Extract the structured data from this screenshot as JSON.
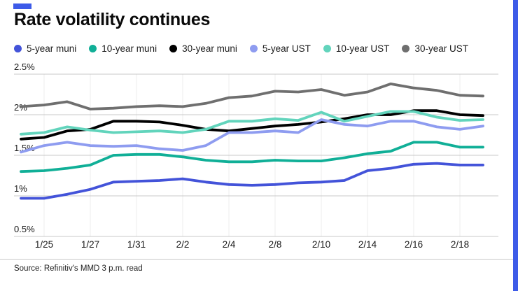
{
  "page": {
    "title": "Rate volatility continues",
    "source": "Source: Refinitiv's MMD 3 p.m. read",
    "accent_color": "#3d5be8"
  },
  "chart_data": {
    "type": "line",
    "title": "Rate volatility continues",
    "xlabel": "",
    "ylabel": "",
    "ylim": [
      0.5,
      2.5
    ],
    "yticks": [
      2.5,
      2.0,
      1.5,
      1.0,
      0.5
    ],
    "ytick_labels": [
      "2.5%",
      "2%",
      "1.5%",
      "1%",
      "0.5%"
    ],
    "grid": "horizontal and faint vertical at labeled ticks",
    "legend_position": "top",
    "x": [
      "1/24",
      "1/25",
      "1/26",
      "1/27",
      "1/28",
      "1/31",
      "2/1",
      "2/2",
      "2/3",
      "2/4",
      "2/7",
      "2/8",
      "2/9",
      "2/10",
      "2/11",
      "2/14",
      "2/15",
      "2/16",
      "2/17",
      "2/18",
      "2/22"
    ],
    "x_tick_labels": [
      "1/25",
      "1/27",
      "1/31",
      "2/2",
      "2/4",
      "2/8",
      "2/10",
      "2/14",
      "2/16",
      "2/18"
    ],
    "x_tick_indices": [
      1,
      3,
      5,
      7,
      9,
      11,
      13,
      15,
      17,
      19
    ],
    "series": [
      {
        "name": "5-year muni",
        "color": "#4353d9",
        "values": [
          0.97,
          0.97,
          1.02,
          1.08,
          1.17,
          1.18,
          1.19,
          1.21,
          1.17,
          1.14,
          1.13,
          1.14,
          1.16,
          1.17,
          1.19,
          1.31,
          1.34,
          1.39,
          1.4,
          1.38,
          1.38
        ]
      },
      {
        "name": "10-year muni",
        "color": "#10af97",
        "values": [
          1.3,
          1.31,
          1.34,
          1.38,
          1.5,
          1.51,
          1.51,
          1.48,
          1.44,
          1.42,
          1.42,
          1.44,
          1.43,
          1.43,
          1.47,
          1.52,
          1.55,
          1.66,
          1.66,
          1.6,
          1.6
        ]
      },
      {
        "name": "30-year muni",
        "color": "#000000",
        "values": [
          1.7,
          1.72,
          1.8,
          1.82,
          1.92,
          1.92,
          1.91,
          1.87,
          1.82,
          1.8,
          1.83,
          1.86,
          1.88,
          1.91,
          1.95,
          2.0,
          2.0,
          2.05,
          2.05,
          2.0,
          1.99
        ]
      },
      {
        "name": "5-year UST",
        "color": "#8e9cf0",
        "values": [
          1.54,
          1.62,
          1.66,
          1.62,
          1.61,
          1.62,
          1.58,
          1.56,
          1.62,
          1.78,
          1.78,
          1.8,
          1.78,
          1.94,
          1.88,
          1.86,
          1.92,
          1.92,
          1.85,
          1.82,
          1.86
        ]
      },
      {
        "name": "10-year UST",
        "color": "#62d4bc",
        "values": [
          1.76,
          1.78,
          1.85,
          1.81,
          1.78,
          1.79,
          1.8,
          1.78,
          1.82,
          1.92,
          1.92,
          1.95,
          1.93,
          2.03,
          1.92,
          1.98,
          2.04,
          2.04,
          1.97,
          1.93,
          1.94
        ]
      },
      {
        "name": "30-year UST",
        "color": "#6f6f6f",
        "values": [
          2.1,
          2.12,
          2.16,
          2.07,
          2.08,
          2.1,
          2.11,
          2.1,
          2.14,
          2.21,
          2.23,
          2.29,
          2.28,
          2.31,
          2.24,
          2.28,
          2.38,
          2.33,
          2.3,
          2.24,
          2.23
        ]
      }
    ]
  }
}
